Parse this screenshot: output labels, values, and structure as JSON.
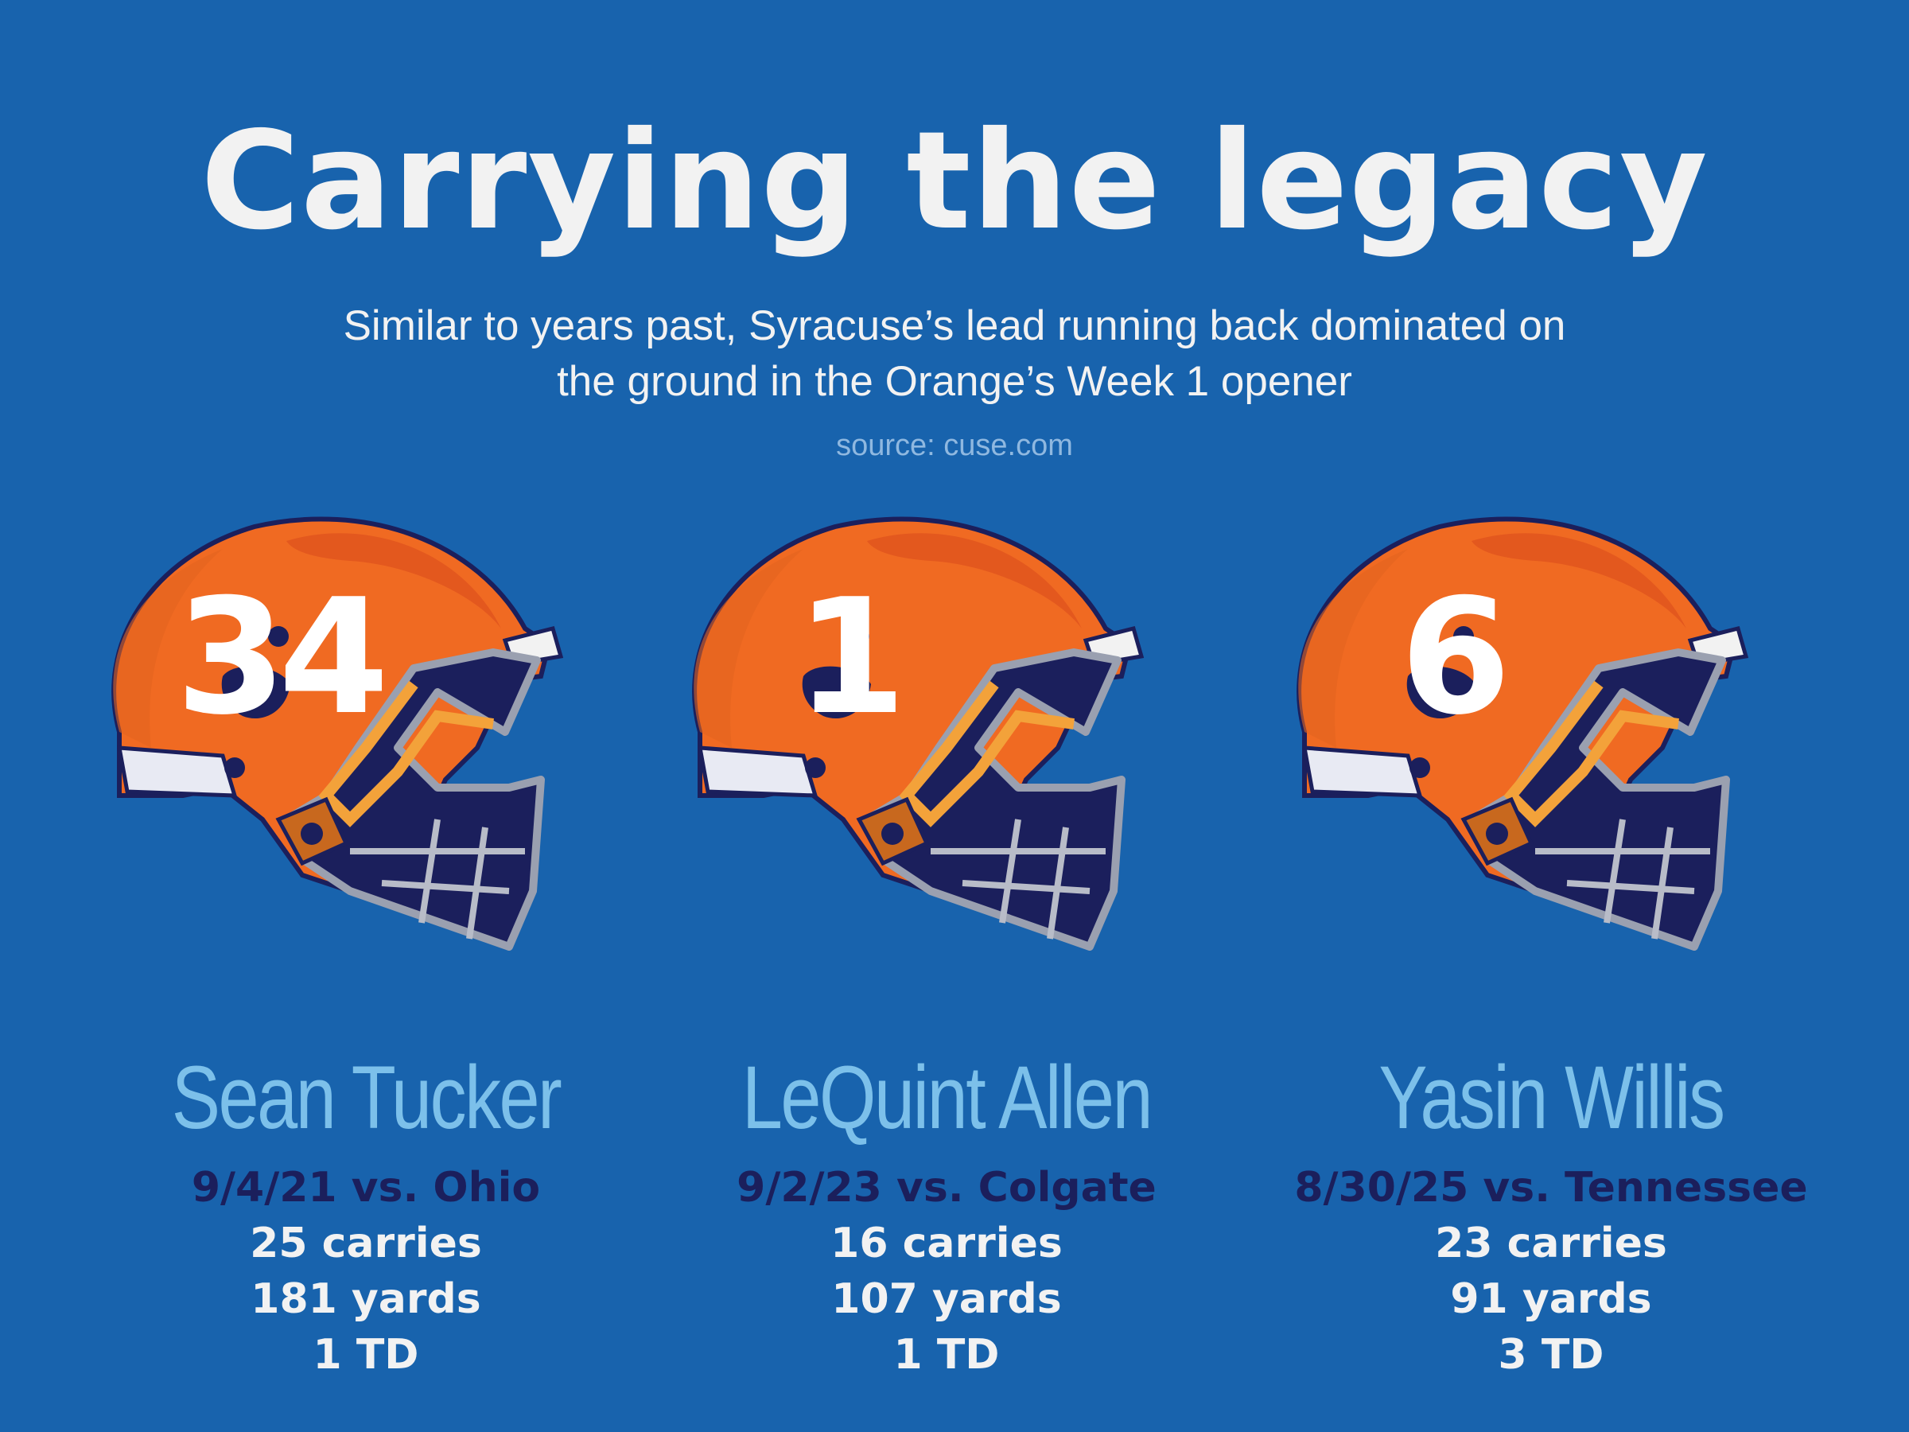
{
  "title": "Carrying the legacy",
  "subtitle_line1": "Similar to years past, Syracuse’s lead running back dominated on",
  "subtitle_line2": "the ground in the Orange’s Week 1 opener",
  "source": "source: cuse.com",
  "colors": {
    "background": "#1863ad",
    "helmet": "#f06a22",
    "facemask_fill": "#1b1f5c",
    "name": "#7cc0ea",
    "game": "#1b1f5c"
  },
  "players": [
    {
      "number": "34",
      "name": "Sean Tucker",
      "game": "9/4/21 vs. Ohio",
      "carries": "25 carries",
      "yards": "181 yards",
      "td": "1 TD"
    },
    {
      "number": "1",
      "name": "LeQuint Allen",
      "game": "9/2/23 vs. Colgate",
      "carries": "16 carries",
      "yards": "107 yards",
      "td": "1 TD"
    },
    {
      "number": "6",
      "name": "Yasin Willis",
      "game": "8/30/25 vs. Tennessee",
      "carries": "23 carries",
      "yards": "91 yards",
      "td": "3 TD"
    }
  ]
}
